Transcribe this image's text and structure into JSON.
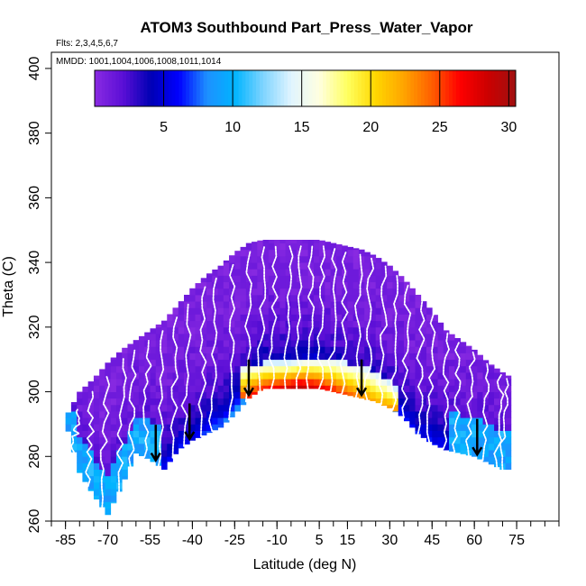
{
  "chart_data": {
    "type": "heatmap",
    "title": "ATOM3 Southbound Part_Press_Water_Vapor",
    "annotations": [
      "Flts: 2,3,4,5,6,7",
      "MMDD: 1001,1004,1006,1008,1011,1014"
    ],
    "xlabel": "Latitude (deg N)",
    "ylabel": "Theta (C)",
    "xlim": [
      -90,
      90
    ],
    "ylim": [
      260,
      405
    ],
    "x_ticks": [
      -85,
      -70,
      -55,
      -40,
      -25,
      -10,
      5,
      15,
      30,
      45,
      60,
      75
    ],
    "x_minor_step": 5,
    "y_ticks": [
      260,
      280,
      300,
      320,
      340,
      360,
      380,
      400
    ],
    "colorbar": {
      "min": 0,
      "max": 30.5,
      "ticks": [
        5,
        10,
        15,
        20,
        25,
        30
      ],
      "placement": "top, inside plot",
      "colors": [
        "#8a2be2",
        "#5b0fd6",
        "#0000b4",
        "#0000ff",
        "#1e90ff",
        "#00b4ff",
        "#7fd4ff",
        "#e0f4ff",
        "#ffffe0",
        "#ffff60",
        "#ffd700",
        "#ffa500",
        "#ff6000",
        "#ff0000",
        "#cc0000",
        "#a01010"
      ]
    },
    "envelope": {
      "lat": [
        -85,
        -80,
        -75,
        -70,
        -65,
        -60,
        -55,
        -50,
        -45,
        -40,
        -35,
        -30,
        -25,
        -20,
        -15,
        -10,
        -5,
        0,
        5,
        10,
        15,
        20,
        25,
        30,
        35,
        40,
        45,
        50,
        55,
        60,
        65,
        70,
        72
      ],
      "theta_bottom": [
        291,
        275,
        268,
        262,
        271,
        281,
        279,
        276,
        282,
        285,
        287,
        289,
        293,
        298,
        301,
        301,
        301,
        301,
        301,
        300,
        299,
        298,
        297,
        295,
        292,
        287,
        284,
        282,
        281,
        280,
        278,
        276,
        276
      ],
      "theta_top": [
        292,
        300,
        304,
        309,
        313,
        316,
        319,
        322,
        327,
        332,
        336,
        339,
        343,
        346,
        347,
        347,
        347,
        347,
        347,
        346,
        345,
        344,
        342,
        339,
        335,
        330,
        325,
        319,
        316,
        313,
        309,
        306,
        305
      ]
    },
    "high_vapor_band": {
      "lat": [
        -22,
        -15,
        -10,
        -5,
        0,
        5,
        10,
        15,
        20,
        25,
        30,
        33
      ],
      "theta_low": [
        299,
        301,
        301,
        301,
        301,
        301,
        300,
        299,
        298,
        297,
        296,
        295
      ],
      "theta_high": [
        308,
        309,
        309,
        309,
        310,
        310,
        310,
        309,
        308,
        306,
        303,
        300
      ]
    },
    "tropopause_arrows_lat": [
      -53,
      -41,
      -20,
      20,
      61
    ],
    "profile_lats": [
      -82,
      -77,
      -72,
      -66,
      -62,
      -57,
      -52,
      -47,
      -43,
      -37,
      -33,
      -27,
      -21,
      -16,
      -12,
      -7,
      -3,
      1,
      5,
      9,
      13,
      18,
      22,
      27,
      31,
      35,
      40,
      44,
      49,
      53,
      58,
      63,
      68,
      70
    ]
  }
}
